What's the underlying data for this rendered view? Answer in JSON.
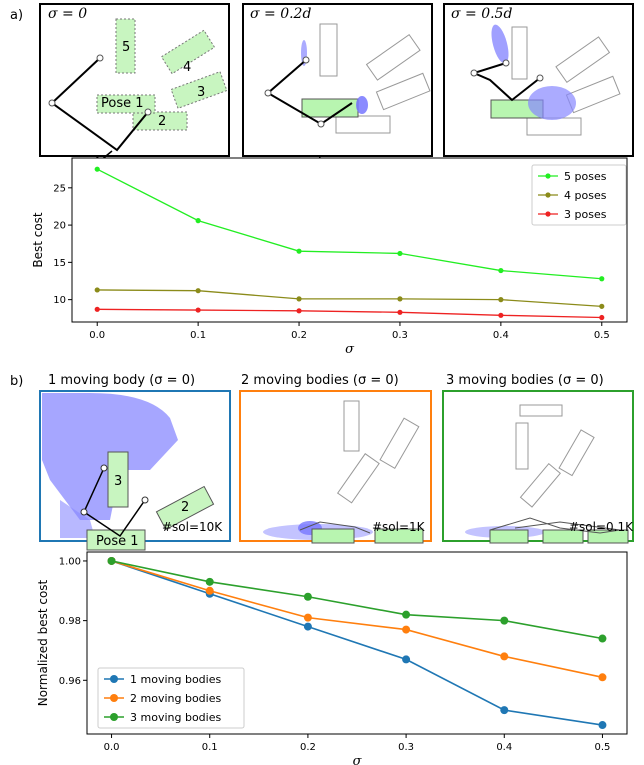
{
  "panel_a": {
    "letter": "a)",
    "sub_labels": [
      "σ = 0",
      "σ = 0.2d",
      "σ = 0.5d"
    ],
    "pose_labels": [
      "5",
      "4",
      "3",
      "2",
      "Pose 1"
    ]
  },
  "panel_b": {
    "letter": "b)",
    "titles": [
      "1 moving body (σ = 0)",
      "2 moving bodies (σ = 0)",
      "3 moving bodies (σ = 0)"
    ],
    "sol_labels": [
      "#sol=10K",
      "#sol=1K",
      "#sol=0.1K"
    ],
    "pose_labels": [
      "3",
      "2",
      "Pose 1"
    ],
    "frame_colors": [
      "#1f77b4",
      "#ff7f0e",
      "#2ca02c"
    ]
  },
  "chart_data": [
    {
      "type": "line",
      "x": [
        0.0,
        0.1,
        0.2,
        0.3,
        0.4,
        0.5
      ],
      "x_ticks": [
        "0.0",
        "0.1",
        "0.2",
        "0.3",
        "0.4",
        "0.5"
      ],
      "y_ticks": [
        "10",
        "15",
        "20",
        "25"
      ],
      "xlabel": "σ",
      "ylabel": "Best cost",
      "ylim": [
        7.0,
        29.0
      ],
      "legend_position": "top-right",
      "series": [
        {
          "name": "5 poses",
          "color": "#22ee22",
          "values": [
            27.5,
            20.6,
            16.5,
            16.2,
            13.9,
            12.8
          ]
        },
        {
          "name": "4 poses",
          "color": "#8b8b1a",
          "values": [
            11.3,
            11.2,
            10.1,
            10.1,
            10.0,
            9.1
          ]
        },
        {
          "name": "3 poses",
          "color": "#ee2222",
          "values": [
            8.7,
            8.6,
            8.5,
            8.3,
            7.9,
            7.6
          ]
        }
      ]
    },
    {
      "type": "line",
      "x": [
        0.0,
        0.1,
        0.2,
        0.3,
        0.4,
        0.5
      ],
      "x_ticks": [
        "0.0",
        "0.1",
        "0.2",
        "0.3",
        "0.4",
        "0.5"
      ],
      "y_ticks": [
        "0.96",
        "0.98",
        "1.00"
      ],
      "xlabel": "σ",
      "ylabel": "Normalized best cost",
      "ylim": [
        0.942,
        1.003
      ],
      "legend_position": "bottom-left",
      "series": [
        {
          "name": "1 moving bodies",
          "color": "#1f77b4",
          "values": [
            1.0,
            0.989,
            0.978,
            0.967,
            0.95,
            0.945
          ]
        },
        {
          "name": "2 moving bodies",
          "color": "#ff7f0e",
          "values": [
            1.0,
            0.99,
            0.981,
            0.977,
            0.968,
            0.961
          ]
        },
        {
          "name": "3 moving bodies",
          "color": "#2ca02c",
          "values": [
            1.0,
            0.993,
            0.988,
            0.982,
            0.98,
            0.974
          ]
        }
      ]
    }
  ]
}
